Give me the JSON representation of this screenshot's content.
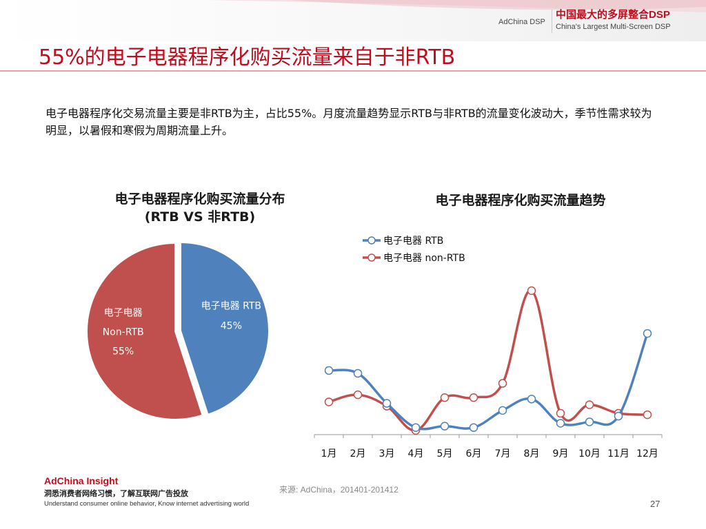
{
  "header": {
    "brand": "AdChina DSP",
    "tagline_cn": "中国最大的多屏整合DSP",
    "tagline_en": "China's Largest Multi-Screen DSP"
  },
  "title": "55%的电子电器程序化购买流量来自于非RTB",
  "summary": "电子电器程序化交易流量主要是非RTB为主，占比55%。月度流量趋势显示RTB与非RTB的流量变化波动大，季节性需求较为明显，以暑假和寒假为周期流量上升。",
  "colors": {
    "accent": "#c00d1e",
    "rtb": "#4f81bd",
    "nonrtb": "#c0504d"
  },
  "chart_data": [
    {
      "type": "pie",
      "title_line1": "电子电器程序化购买流量分布",
      "title_line2": "(RTB VS 非RTB)",
      "slices": [
        {
          "label": "电子电器 RTB",
          "value": 45,
          "pct_label": "45%",
          "color": "#4f81bd"
        },
        {
          "label_line1": "电子电器",
          "label_line2": "Non-RTB",
          "value": 55,
          "pct_label": "55%",
          "color": "#c0504d"
        }
      ]
    },
    {
      "type": "line",
      "title": "电子电器程序化购买流量趋势",
      "categories": [
        "1月",
        "2月",
        "3月",
        "4月",
        "5月",
        "6月",
        "7月",
        "8月",
        "9月",
        "10月",
        "11月",
        "12月"
      ],
      "ylim": [
        0,
        100
      ],
      "grid": false,
      "legend_position": "top-left",
      "series": [
        {
          "name": "电子电器 RTB",
          "color": "#4f81bd",
          "values": [
            44,
            42,
            21,
            4,
            5,
            4,
            16,
            24,
            7,
            8,
            12,
            70
          ]
        },
        {
          "name": "电子电器 non-RTB",
          "color": "#c0504d",
          "values": [
            22,
            27,
            19,
            2,
            25,
            25,
            35,
            100,
            14,
            20,
            14,
            13
          ]
        }
      ]
    }
  ],
  "footer": {
    "brand": "AdChina Insight",
    "cn": "洞悉消费者网络习惯，了解互联网广告投放",
    "en": "Understand consumer online behavior, Know internet advertising world",
    "source": "来源: AdChina，201401-201412",
    "page": "27"
  }
}
